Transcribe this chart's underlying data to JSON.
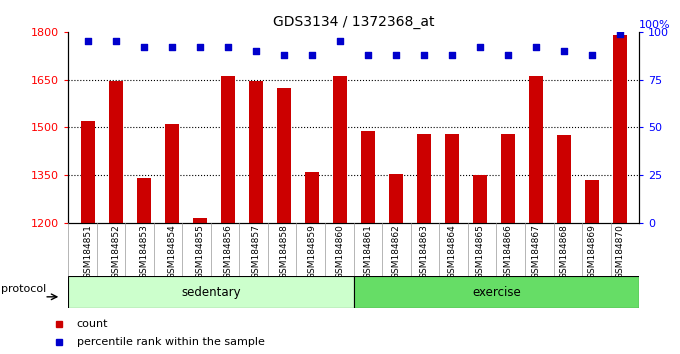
{
  "title": "GDS3134 / 1372368_at",
  "samples": [
    "GSM184851",
    "GSM184852",
    "GSM184853",
    "GSM184854",
    "GSM184855",
    "GSM184856",
    "GSM184857",
    "GSM184858",
    "GSM184859",
    "GSM184860",
    "GSM184861",
    "GSM184862",
    "GSM184863",
    "GSM184864",
    "GSM184865",
    "GSM184866",
    "GSM184867",
    "GSM184868",
    "GSM184869",
    "GSM184870"
  ],
  "counts": [
    1520,
    1645,
    1340,
    1510,
    1215,
    1660,
    1645,
    1625,
    1360,
    1660,
    1490,
    1355,
    1480,
    1480,
    1350,
    1480,
    1660,
    1475,
    1335,
    1790
  ],
  "percentiles": [
    95,
    95,
    92,
    92,
    92,
    92,
    90,
    88,
    88,
    95,
    88,
    88,
    88,
    88,
    92,
    88,
    92,
    90,
    88,
    99
  ],
  "sedentary_count": 10,
  "exercise_count": 10,
  "ylim_left": [
    1200,
    1800
  ],
  "ylim_right": [
    0,
    100
  ],
  "yticks_left": [
    1200,
    1350,
    1500,
    1650,
    1800
  ],
  "yticks_right": [
    0,
    25,
    50,
    75,
    100
  ],
  "bar_color": "#cc0000",
  "dot_color": "#0000cc",
  "sedentary_color": "#ccffcc",
  "exercise_color": "#66dd66",
  "legend_count_label": "count",
  "legend_pct_label": "percentile rank within the sample",
  "protocol_label": "protocol",
  "sedentary_label": "sedentary",
  "exercise_label": "exercise"
}
